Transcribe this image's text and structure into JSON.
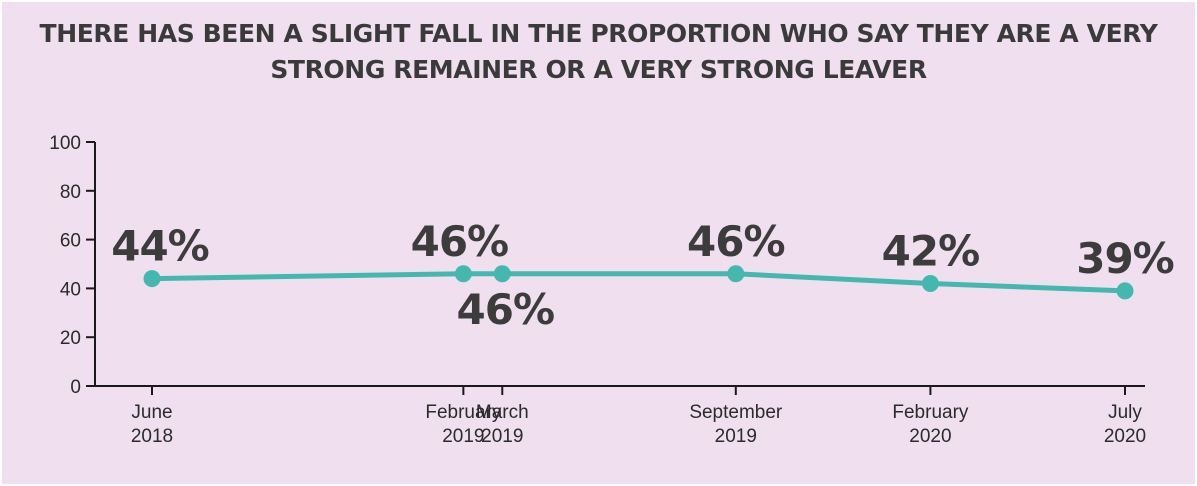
{
  "chart_data": {
    "type": "line",
    "title": "THERE HAS BEEN A SLIGHT FALL IN THE PROPORTION WHO SAY THEY ARE A VERY STRONG REMAINER OR A VERY STRONG LEAVER",
    "xlabel": "",
    "ylabel": "",
    "ylim": [
      0,
      100
    ],
    "yticks": [
      "0",
      "20",
      "40",
      "60",
      "80",
      "100"
    ],
    "categories": [
      [
        "June",
        "2018"
      ],
      [
        "February",
        "2019"
      ],
      [
        "March",
        "2019"
      ],
      [
        "September",
        "2019"
      ],
      [
        "February",
        "2020"
      ],
      [
        "July",
        "2020"
      ]
    ],
    "x_dates": [
      "2018-06",
      "2019-02",
      "2019-03",
      "2019-09",
      "2020-02",
      "2020-07"
    ],
    "series": [
      {
        "values": [
          44,
          46,
          46,
          46,
          42,
          39
        ],
        "labels": [
          "44%",
          "46%",
          "46%",
          "46%",
          "42%",
          "39%"
        ],
        "color": "#44b8ae"
      }
    ],
    "grid": false,
    "legend": "none",
    "background": "#efdfef",
    "axis_color": "#1a1a1a"
  }
}
